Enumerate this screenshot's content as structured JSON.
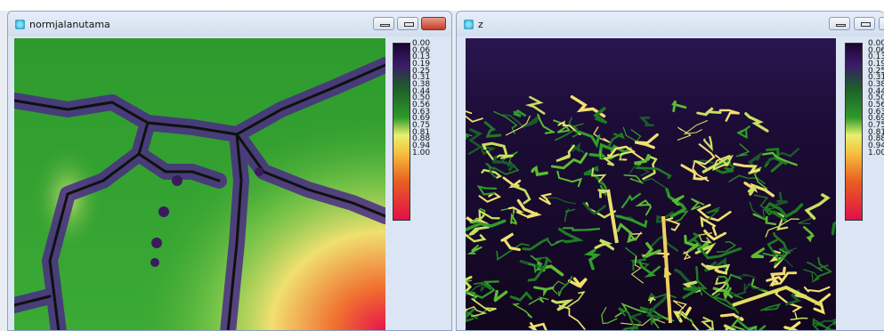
{
  "windows": [
    {
      "title": "normjalanutama",
      "legend": {
        "labels": [
          "0.00",
          "0.06",
          "0.13",
          "0.19",
          "0.25",
          "0.31",
          "0.38",
          "0.44",
          "0.50",
          "0.56",
          "0.63",
          "0.69",
          "0.75",
          "0.81",
          "0.88",
          "0.94",
          "1.00"
        ]
      }
    },
    {
      "title": "z",
      "legend": {
        "labels": [
          "0.00",
          "0.06",
          "0.13",
          "0.19",
          "0.25",
          "0.31",
          "0.38",
          "0.44",
          "0.50",
          "0.56",
          "0.63",
          "0.69",
          "0.75",
          "0.81",
          "0.88",
          "0.94",
          "1.00"
        ]
      }
    }
  ]
}
